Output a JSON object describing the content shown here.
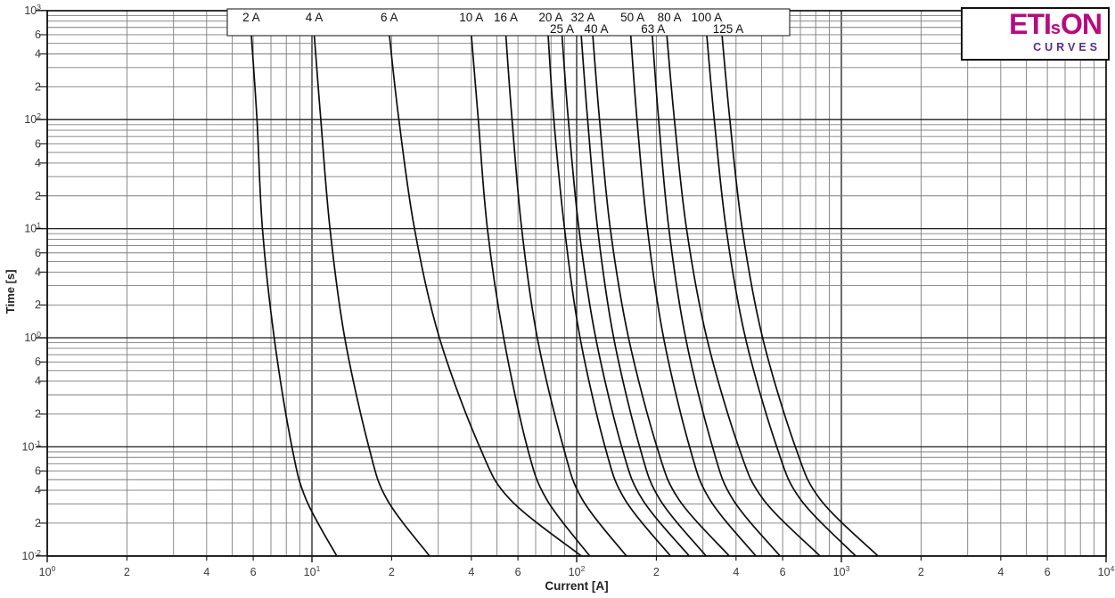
{
  "logo": {
    "part1": "ETI",
    "part2": "s",
    "part3": "ON",
    "subtitle": "CURVES"
  },
  "axes": {
    "x_title": "Current [A]",
    "y_title": "Time [s]"
  },
  "x_axis": {
    "ticks": [
      {
        "v": 1,
        "t": "10",
        "s": "0"
      },
      {
        "v": 2,
        "t": "2"
      },
      {
        "v": 4,
        "t": "4"
      },
      {
        "v": 6,
        "t": "6"
      },
      {
        "v": 10,
        "t": "10",
        "s": "1"
      },
      {
        "v": 20,
        "t": "2"
      },
      {
        "v": 40,
        "t": "4"
      },
      {
        "v": 60,
        "t": "6"
      },
      {
        "v": 100,
        "t": "10",
        "s": "2"
      },
      {
        "v": 200,
        "t": "2"
      },
      {
        "v": 400,
        "t": "4"
      },
      {
        "v": 600,
        "t": "6"
      },
      {
        "v": 1000,
        "t": "10",
        "s": "3"
      },
      {
        "v": 2000,
        "t": "2"
      },
      {
        "v": 4000,
        "t": "4"
      },
      {
        "v": 6000,
        "t": "6"
      },
      {
        "v": 10000,
        "t": "10",
        "s": "4"
      }
    ]
  },
  "y_axis": {
    "ticks": [
      {
        "v": 1000,
        "t": "10",
        "s": "3"
      },
      {
        "v": 600,
        "t": "6"
      },
      {
        "v": 400,
        "t": "4"
      },
      {
        "v": 200,
        "t": "2"
      },
      {
        "v": 100,
        "t": "10",
        "s": "2"
      },
      {
        "v": 60,
        "t": "6"
      },
      {
        "v": 40,
        "t": "4"
      },
      {
        "v": 20,
        "t": "2"
      },
      {
        "v": 10,
        "t": "10",
        "s": "1"
      },
      {
        "v": 6,
        "t": "6"
      },
      {
        "v": 4,
        "t": "4"
      },
      {
        "v": 2,
        "t": "2"
      },
      {
        "v": 1,
        "t": "10",
        "s": "0"
      },
      {
        "v": 0.6,
        "t": "6"
      },
      {
        "v": 0.4,
        "t": "4"
      },
      {
        "v": 0.2,
        "t": "2"
      },
      {
        "v": 0.1,
        "t": "10",
        "s": "-1"
      },
      {
        "v": 0.06,
        "t": "6"
      },
      {
        "v": 0.04,
        "t": "4"
      },
      {
        "v": 0.02,
        "t": "2"
      },
      {
        "v": 0.01,
        "t": "10",
        "s": "-2"
      }
    ]
  },
  "chart_data": {
    "type": "line",
    "title": "Fuse time-current characteristic curves",
    "xlabel": "Current [A]",
    "ylabel": "Time [s]",
    "x_scale": "log",
    "y_scale": "log",
    "xlim": [
      1,
      10000
    ],
    "ylim": [
      0.01,
      1000
    ],
    "grid": true,
    "curve_color": "#0d0d0d",
    "series": [
      {
        "label": "2 A",
        "rating_A": 2,
        "row": 1,
        "label_dx": 0,
        "points": [
          [
            5.9,
            600
          ],
          [
            6.2,
            100
          ],
          [
            6.5,
            10
          ],
          [
            7.2,
            1
          ],
          [
            8.4,
            0.1
          ],
          [
            9.5,
            0.033
          ],
          [
            12.4,
            0.01
          ]
        ]
      },
      {
        "label": "4 A",
        "rating_A": 4,
        "row": 1,
        "label_dx": 0,
        "points": [
          [
            10.2,
            600
          ],
          [
            10.8,
            100
          ],
          [
            11.7,
            10
          ],
          [
            13.3,
            1
          ],
          [
            16.4,
            0.1
          ],
          [
            19.2,
            0.033
          ],
          [
            27.8,
            0.01
          ]
        ]
      },
      {
        "label": "6 A",
        "rating_A": 6,
        "row": 1,
        "label_dx": 0,
        "points": [
          [
            19.6,
            600
          ],
          [
            21.3,
            100
          ],
          [
            24.4,
            10
          ],
          [
            30.3,
            1
          ],
          [
            43,
            0.1
          ],
          [
            56,
            0.033
          ],
          [
            104,
            0.01
          ]
        ]
      },
      {
        "label": "10 A",
        "rating_A": 10,
        "row": 1,
        "label_dx": 0,
        "points": [
          [
            40,
            600
          ],
          [
            42.5,
            100
          ],
          [
            46,
            10
          ],
          [
            53,
            1
          ],
          [
            65,
            0.1
          ],
          [
            77,
            0.033
          ],
          [
            112,
            0.01
          ]
        ]
      },
      {
        "label": "16 A",
        "rating_A": 16,
        "row": 1,
        "label_dx": 0,
        "points": [
          [
            54,
            600
          ],
          [
            57,
            100
          ],
          [
            62,
            10
          ],
          [
            71,
            1
          ],
          [
            89,
            0.1
          ],
          [
            105,
            0.033
          ],
          [
            154,
            0.01
          ]
        ]
      },
      {
        "label": "20 A",
        "rating_A": 20,
        "row": 1,
        "label_dx": 3,
        "points": [
          [
            78,
            600
          ],
          [
            82,
            100
          ],
          [
            90,
            10
          ],
          [
            103,
            1
          ],
          [
            128,
            0.1
          ],
          [
            152,
            0.033
          ],
          [
            226,
            0.01
          ]
        ]
      },
      {
        "label": "25 A",
        "rating_A": 25,
        "row": 2,
        "label_dx": 0,
        "points": [
          [
            88,
            600
          ],
          [
            93,
            100
          ],
          [
            102,
            10
          ],
          [
            118,
            1
          ],
          [
            148,
            0.1
          ],
          [
            177,
            0.033
          ],
          [
            266,
            0.01
          ]
        ]
      },
      {
        "label": "32 A",
        "rating_A": 32,
        "row": 1,
        "label_dx": 2,
        "points": [
          [
            104,
            600
          ],
          [
            110,
            100
          ],
          [
            120,
            10
          ],
          [
            138,
            1
          ],
          [
            173,
            0.1
          ],
          [
            206,
            0.033
          ],
          [
            308,
            0.01
          ]
        ]
      },
      {
        "label": "40 A",
        "rating_A": 40,
        "row": 2,
        "label_dx": 4,
        "points": [
          [
            115,
            600
          ],
          [
            122,
            100
          ],
          [
            134,
            10
          ],
          [
            157,
            1
          ],
          [
            201,
            0.1
          ],
          [
            243,
            0.033
          ],
          [
            377,
            0.01
          ]
        ]
      },
      {
        "label": "50 A",
        "rating_A": 50,
        "row": 1,
        "label_dx": 2,
        "points": [
          [
            160,
            600
          ],
          [
            169,
            100
          ],
          [
            185,
            10
          ],
          [
            213,
            1
          ],
          [
            267,
            0.1
          ],
          [
            318,
            0.033
          ],
          [
            475,
            0.01
          ]
        ]
      },
      {
        "label": "63 A",
        "rating_A": 63,
        "row": 2,
        "label_dx": 1,
        "points": [
          [
            193,
            600
          ],
          [
            204,
            100
          ],
          [
            223,
            10
          ],
          [
            258,
            1
          ],
          [
            326,
            0.1
          ],
          [
            389,
            0.033
          ],
          [
            586,
            0.01
          ]
        ]
      },
      {
        "label": "80 A",
        "rating_A": 80,
        "row": 1,
        "label_dx": 3,
        "points": [
          [
            219,
            600
          ],
          [
            234,
            100
          ],
          [
            260,
            10
          ],
          [
            310,
            1
          ],
          [
            409,
            0.1
          ],
          [
            507,
            0.033
          ],
          [
            830,
            0.01
          ]
        ]
      },
      {
        "label": "100 A",
        "rating_A": 100,
        "row": 1,
        "label_dx": 0,
        "points": [
          [
            310,
            600
          ],
          [
            331,
            100
          ],
          [
            367,
            10
          ],
          [
            434,
            1
          ],
          [
            570,
            0.1
          ],
          [
            701,
            0.033
          ],
          [
            1132,
            0.01
          ]
        ]
      },
      {
        "label": "125 A",
        "rating_A": 125,
        "row": 2,
        "label_dx": 7,
        "points": [
          [
            354,
            600
          ],
          [
            379,
            100
          ],
          [
            422,
            10
          ],
          [
            504,
            1
          ],
          [
            670,
            0.1
          ],
          [
            832,
            0.033
          ],
          [
            1374,
            0.01
          ]
        ]
      }
    ],
    "legend_box": {
      "labels_in_top_box": true
    }
  }
}
